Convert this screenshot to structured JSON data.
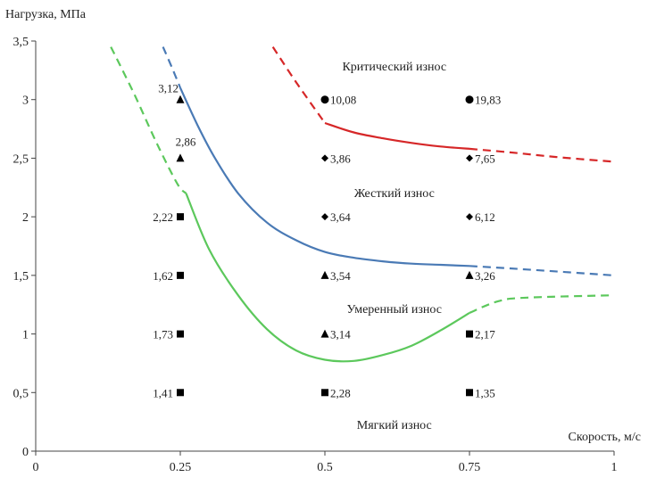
{
  "chart_data": {
    "type": "scatter",
    "title": "",
    "xlabel": "Скорость, м/с",
    "ylabel": "Нагрузка, МПа",
    "xlim": [
      0,
      1
    ],
    "ylim": [
      0,
      3.5
    ],
    "x_ticks": [
      "0",
      "0.25",
      "0.5",
      "0.75",
      "1"
    ],
    "y_ticks": [
      "0",
      "0,5",
      "1",
      "1,5",
      "2",
      "2,5",
      "3",
      "3,5"
    ],
    "grid": false,
    "legend": "none",
    "regions": [
      {
        "name": "Критический износ",
        "x": 0.62,
        "y": 3.25
      },
      {
        "name": "Жесткий износ",
        "x": 0.62,
        "y": 2.17
      },
      {
        "name": "Умеренный износ",
        "x": 0.62,
        "y": 1.18
      },
      {
        "name": "Мягкий износ",
        "x": 0.62,
        "y": 0.19
      }
    ],
    "points": [
      {
        "x": 0.25,
        "y": 3.0,
        "marker": "triangle",
        "label": "3,12",
        "label_side": "left-above"
      },
      {
        "x": 0.25,
        "y": 2.5,
        "marker": "triangle",
        "label": "2,86",
        "label_side": "above"
      },
      {
        "x": 0.25,
        "y": 2.0,
        "marker": "square",
        "label": "2,22",
        "label_side": "left"
      },
      {
        "x": 0.25,
        "y": 1.5,
        "marker": "square",
        "label": "1,62",
        "label_side": "left"
      },
      {
        "x": 0.25,
        "y": 1.0,
        "marker": "square",
        "label": "1,73",
        "label_side": "left"
      },
      {
        "x": 0.25,
        "y": 0.5,
        "marker": "square",
        "label": "1,41",
        "label_side": "left"
      },
      {
        "x": 0.5,
        "y": 3.0,
        "marker": "circle",
        "label": "10,08",
        "label_side": "right"
      },
      {
        "x": 0.5,
        "y": 2.5,
        "marker": "diamond",
        "label": "3,86",
        "label_side": "right"
      },
      {
        "x": 0.5,
        "y": 2.0,
        "marker": "diamond",
        "label": "3,64",
        "label_side": "right"
      },
      {
        "x": 0.5,
        "y": 1.5,
        "marker": "triangle",
        "label": "3,54",
        "label_side": "right"
      },
      {
        "x": 0.5,
        "y": 1.0,
        "marker": "triangle",
        "label": "3,14",
        "label_side": "right"
      },
      {
        "x": 0.5,
        "y": 0.5,
        "marker": "square",
        "label": "2,28",
        "label_side": "right"
      },
      {
        "x": 0.75,
        "y": 3.0,
        "marker": "circle",
        "label": "19,83",
        "label_side": "right"
      },
      {
        "x": 0.75,
        "y": 2.5,
        "marker": "diamond",
        "label": "7,65",
        "label_side": "right"
      },
      {
        "x": 0.75,
        "y": 2.0,
        "marker": "diamond",
        "label": "6,12",
        "label_side": "right"
      },
      {
        "x": 0.75,
        "y": 1.5,
        "marker": "triangle",
        "label": "3,26",
        "label_side": "right"
      },
      {
        "x": 0.75,
        "y": 1.0,
        "marker": "square",
        "label": "2,17",
        "label_side": "right"
      },
      {
        "x": 0.75,
        "y": 0.5,
        "marker": "square",
        "label": "1,35",
        "label_side": "right"
      }
    ],
    "boundaries": [
      {
        "color": "#d62728",
        "solid": [
          [
            0.5,
            2.8
          ],
          [
            0.55,
            2.72
          ],
          [
            0.6,
            2.67
          ],
          [
            0.65,
            2.63
          ],
          [
            0.7,
            2.6
          ],
          [
            0.75,
            2.58
          ]
        ],
        "dashed": [
          [
            [
              0.41,
              3.45
            ],
            [
              0.45,
              3.15
            ],
            [
              0.5,
              2.8
            ]
          ],
          [
            [
              0.75,
              2.58
            ],
            [
              0.82,
              2.55
            ],
            [
              0.9,
              2.51
            ],
            [
              1.0,
              2.47
            ]
          ]
        ]
      },
      {
        "color": "#4a7ab5",
        "solid": [
          [
            0.25,
            3.1
          ],
          [
            0.28,
            2.78
          ],
          [
            0.31,
            2.5
          ],
          [
            0.35,
            2.2
          ],
          [
            0.4,
            1.95
          ],
          [
            0.45,
            1.8
          ],
          [
            0.5,
            1.7
          ],
          [
            0.55,
            1.65
          ],
          [
            0.6,
            1.62
          ],
          [
            0.65,
            1.6
          ],
          [
            0.7,
            1.59
          ],
          [
            0.75,
            1.58
          ]
        ],
        "dashed": [
          [
            [
              0.22,
              3.45
            ],
            [
              0.235,
              3.28
            ],
            [
              0.25,
              3.1
            ]
          ],
          [
            [
              0.75,
              1.58
            ],
            [
              0.85,
              1.55
            ],
            [
              1.0,
              1.5
            ]
          ]
        ]
      },
      {
        "color": "#5cc85c",
        "solid": [
          [
            0.26,
            2.2
          ],
          [
            0.3,
            1.72
          ],
          [
            0.35,
            1.33
          ],
          [
            0.4,
            1.04
          ],
          [
            0.45,
            0.86
          ],
          [
            0.5,
            0.78
          ],
          [
            0.55,
            0.77
          ],
          [
            0.6,
            0.82
          ],
          [
            0.65,
            0.9
          ],
          [
            0.7,
            1.03
          ],
          [
            0.75,
            1.18
          ]
        ],
        "dashed": [
          [
            [
              0.13,
              3.45
            ],
            [
              0.17,
              3.05
            ],
            [
              0.21,
              2.62
            ],
            [
              0.245,
              2.28
            ],
            [
              0.26,
              2.2
            ]
          ],
          [
            [
              0.75,
              1.18
            ],
            [
              0.8,
              1.28
            ],
            [
              0.85,
              1.31
            ],
            [
              1.0,
              1.33
            ]
          ]
        ]
      }
    ]
  }
}
